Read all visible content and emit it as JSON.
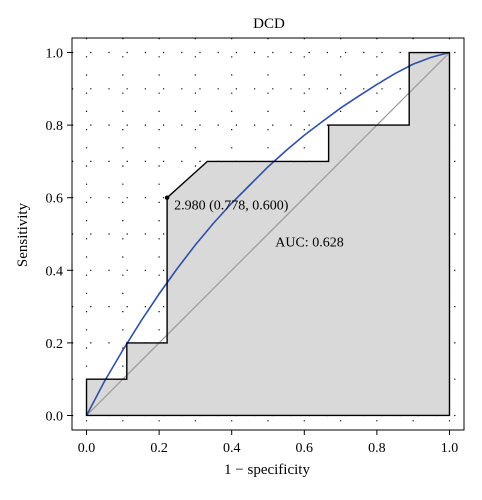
{
  "chart_data": {
    "type": "line",
    "title": "DCD",
    "xlabel": "1 − specificity",
    "ylabel": "Sensitivity",
    "xlim": [
      -0.04,
      1.04
    ],
    "ylim": [
      -0.04,
      1.04
    ],
    "x_ticks": [
      0.0,
      0.2,
      0.4,
      0.6,
      0.8,
      1.0
    ],
    "x_tick_labels": [
      "0.0",
      "0.2",
      "0.4",
      "0.6",
      "0.8",
      "1.0"
    ],
    "y_ticks": [
      0.0,
      0.2,
      0.4,
      0.6,
      0.8,
      1.0
    ],
    "y_tick_labels": [
      "0.0",
      "0.2",
      "0.4",
      "0.6",
      "0.8",
      "1.0"
    ],
    "grid": "dotted",
    "series": [
      {
        "kind": "empirical-roc-step",
        "x": [
          0,
          0,
          0.111,
          0.111,
          0.222,
          0.222,
          0.333,
          0.667,
          0.667,
          0.889,
          0.889,
          1.0,
          1.0
        ],
        "y": [
          0,
          0.1,
          0.1,
          0.2,
          0.2,
          0.6,
          0.7,
          0.7,
          0.8,
          0.8,
          1.0,
          1.0,
          0
        ],
        "color": "#000000",
        "fill": "#d9d9d9"
      },
      {
        "kind": "smoothed-roc",
        "x": [
          0,
          0.05,
          0.1,
          0.15,
          0.2,
          0.25,
          0.3,
          0.35,
          0.4,
          0.45,
          0.5,
          0.55,
          0.6,
          0.65,
          0.7,
          0.75,
          0.8,
          0.85,
          0.9,
          0.95,
          1.0
        ],
        "y": [
          0,
          0.095,
          0.18,
          0.26,
          0.335,
          0.405,
          0.47,
          0.53,
          0.585,
          0.635,
          0.685,
          0.73,
          0.772,
          0.81,
          0.847,
          0.88,
          0.912,
          0.942,
          0.968,
          0.987,
          1.0
        ],
        "color": "#3050a8"
      },
      {
        "kind": "diagonal",
        "x": [
          0,
          1
        ],
        "y": [
          0,
          1
        ],
        "color": "#9a9a9a"
      }
    ],
    "annotations": [
      {
        "name": "threshold",
        "text": "2.980 (0.778, 0.600)",
        "x": 0.222,
        "y": 0.6
      },
      {
        "name": "auc",
        "text": "AUC: 0.628",
        "x": 0.52,
        "y": 0.48
      }
    ]
  }
}
